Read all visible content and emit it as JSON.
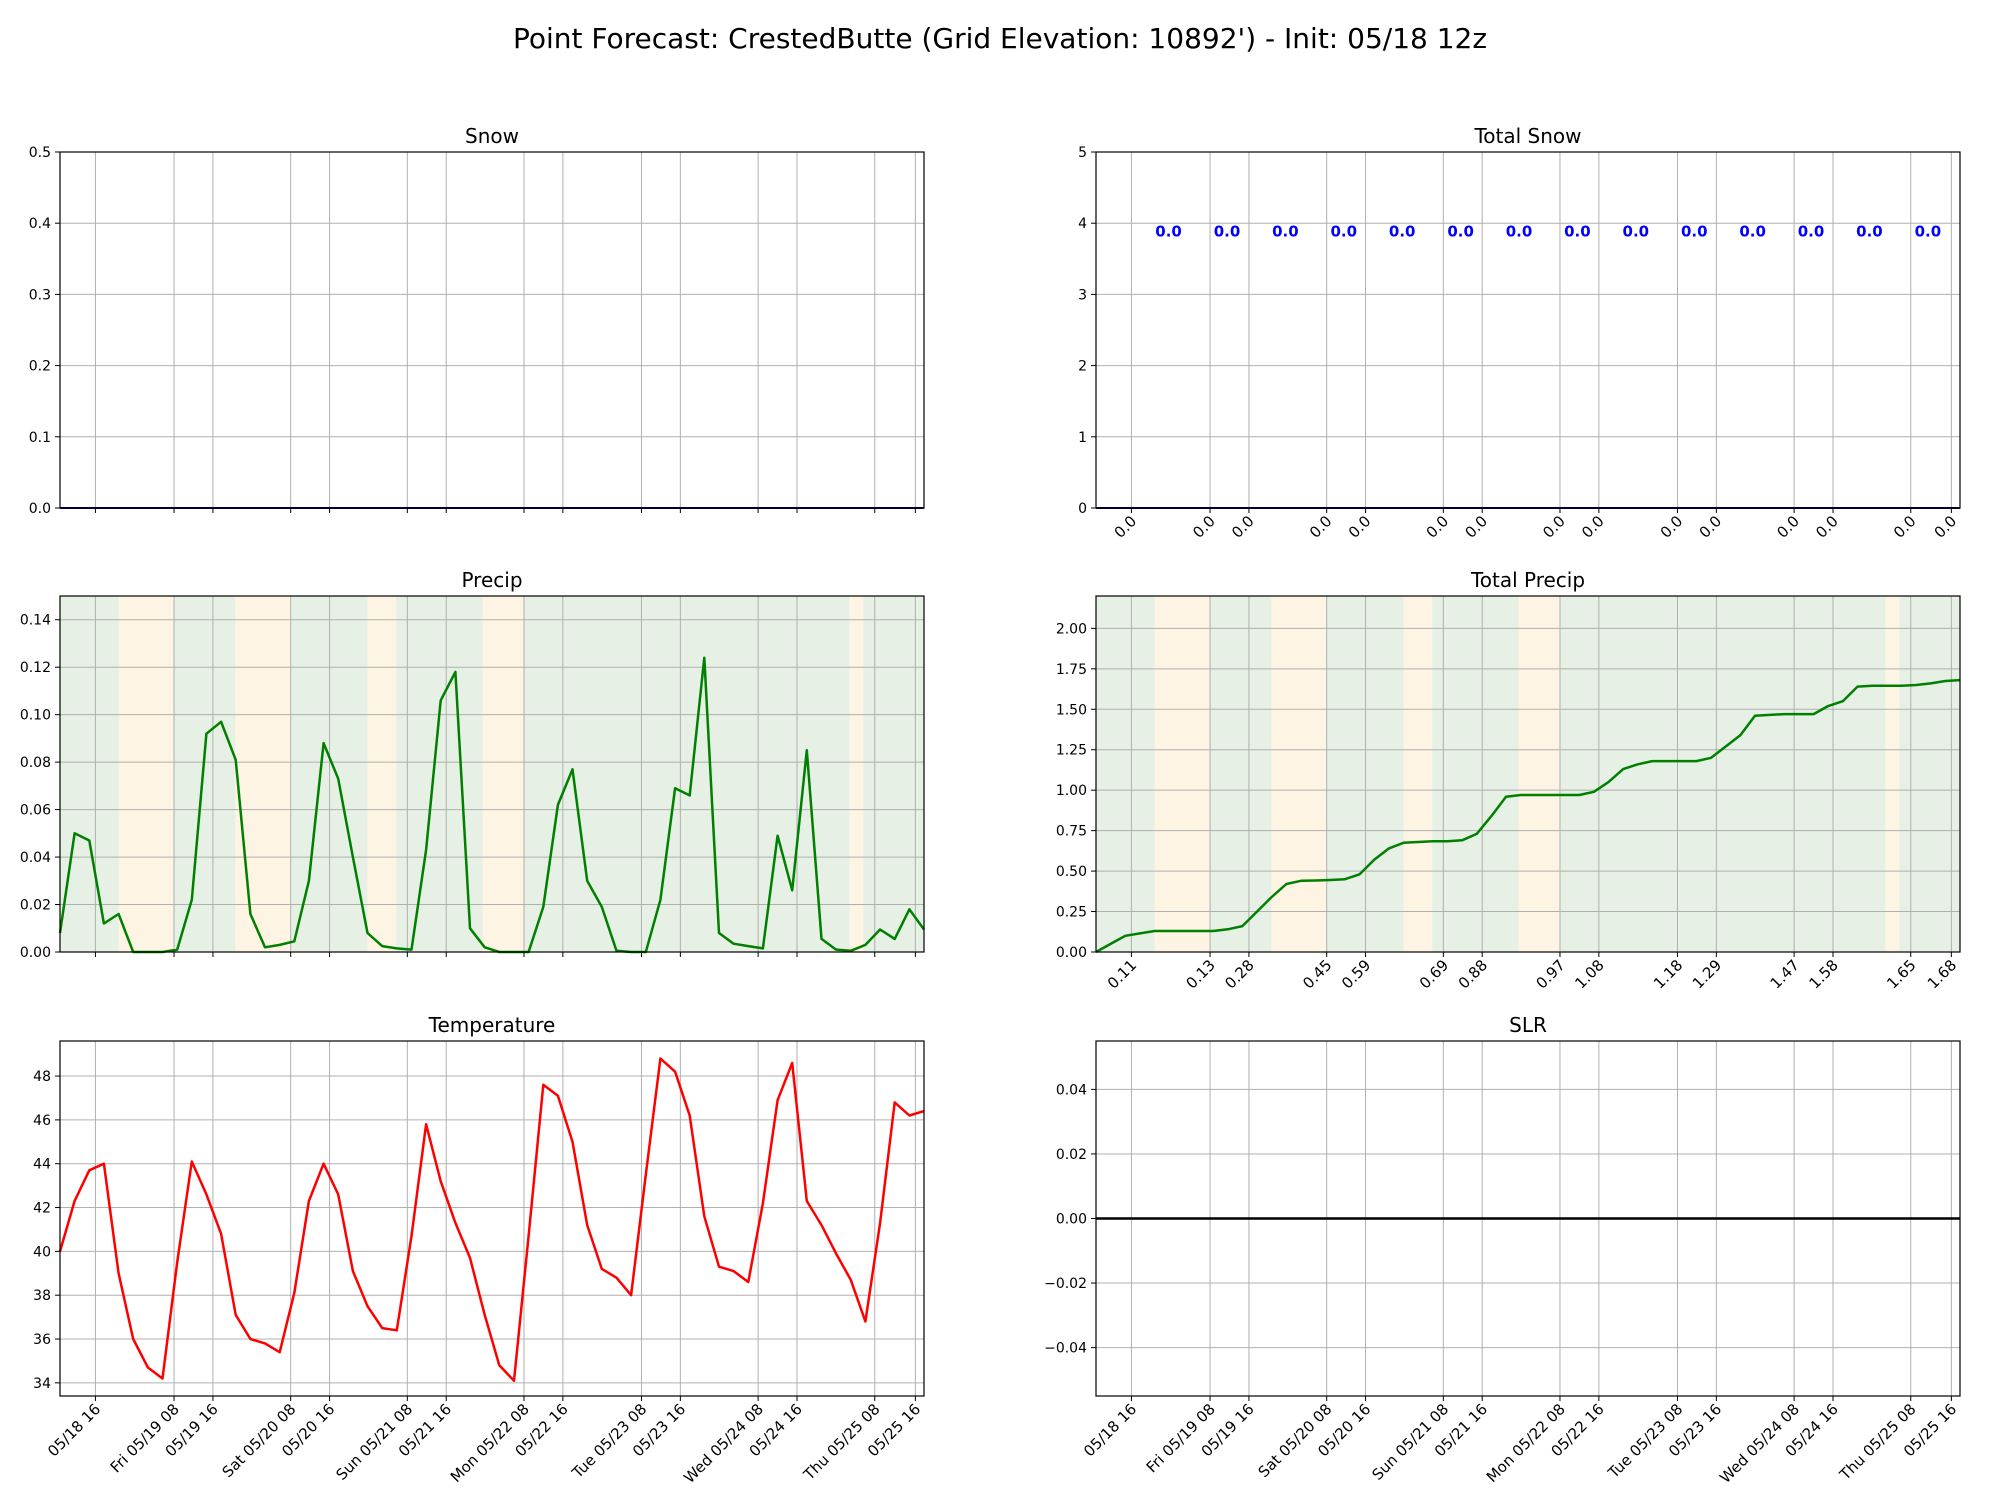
{
  "figure_title": "Point Forecast: CrestedButte (Grid Elevation: 10892') - Init: 05/18 12z",
  "colors": {
    "precip_line": "#008000",
    "temp_line": "#ff0000",
    "snow_line": "#000080",
    "slr_line": "#000000",
    "total_snow_label": "#0000ff",
    "band_green": "#e6f0e4",
    "band_orange": "#fdf4e3",
    "grid": "#b0b0b0"
  },
  "chart_data": [
    {
      "id": "snow",
      "type": "line",
      "title": "Snow",
      "ylim": [
        0,
        0.5
      ],
      "yticks": [
        "0.0",
        "0.1",
        "0.2",
        "0.3",
        "0.4",
        "0.5"
      ],
      "grid": true,
      "series": [
        {
          "values": [
            0,
            0
          ]
        }
      ]
    },
    {
      "id": "total_snow",
      "type": "line",
      "title": "Total Snow",
      "ylim": [
        0,
        5
      ],
      "yticks": [
        "0",
        "1",
        "2",
        "3",
        "4",
        "5"
      ],
      "grid": true,
      "period_totals": [
        "0.0",
        "0.0",
        "0.0",
        "0.0",
        "0.0",
        "0.0",
        "0.0",
        "0.0",
        "0.0",
        "0.0",
        "0.0",
        "0.0",
        "0.0",
        "0.0"
      ],
      "xtick_labels": [
        "0.0",
        "0.0",
        "0.0",
        "0.0",
        "0.0",
        "0.0",
        "0.0",
        "0.0",
        "0.0",
        "0.0",
        "0.0",
        "0.0",
        "0.0",
        "0.0",
        "0.0",
        "0.0"
      ],
      "series": [
        {
          "values": [
            0,
            0
          ]
        }
      ]
    },
    {
      "id": "precip",
      "type": "line",
      "title": "Precip",
      "ylim": [
        0,
        0.15
      ],
      "yticks": [
        "0.00",
        "0.02",
        "0.04",
        "0.06",
        "0.08",
        "0.10",
        "0.12",
        "0.14"
      ],
      "grid": true,
      "series": [
        {
          "values": [
            0.008,
            0.05,
            0.047,
            0.012,
            0.016,
            0,
            0,
            0,
            0.001,
            0.022,
            0.092,
            0.097,
            0.081,
            0.016,
            0.002,
            0.003,
            0.0045,
            0.03,
            0.088,
            0.073,
            0.04,
            0.008,
            0.0025,
            0.0015,
            0.001,
            0.043,
            0.106,
            0.118,
            0.01,
            0.002,
            0,
            0,
            0,
            0.019,
            0.062,
            0.077,
            0.03,
            0.019,
            0.0005,
            0,
            0,
            0.022,
            0.069,
            0.066,
            0.124,
            0.008,
            0.0035,
            0.0025,
            0.0015,
            0.049,
            0.026,
            0.085,
            0.0055,
            0.001,
            0.0005,
            0.003,
            0.0095,
            0.0055,
            0.018,
            0.0095
          ]
        }
      ]
    },
    {
      "id": "total_precip",
      "type": "area",
      "title": "Total Precip",
      "ylim": [
        0,
        2.2
      ],
      "yticks": [
        "0.00",
        "0.25",
        "0.50",
        "0.75",
        "1.00",
        "1.25",
        "1.50",
        "1.75",
        "2.00"
      ],
      "grid": true,
      "xtick_labels": [
        "0.11",
        "0.13",
        "0.28",
        "0.45",
        "0.59",
        "0.69",
        "0.88",
        "0.97",
        "1.08",
        "1.18",
        "1.29",
        "1.47",
        "1.58",
        "1.65",
        "1.68"
      ],
      "series": [
        {
          "values": [
            0,
            0.05,
            0.1,
            0.115,
            0.13,
            0.13,
            0.13,
            0.13,
            0.13,
            0.14,
            0.16,
            0.25,
            0.34,
            0.42,
            0.44,
            0.442,
            0.445,
            0.45,
            0.48,
            0.57,
            0.64,
            0.675,
            0.68,
            0.685,
            0.685,
            0.69,
            0.73,
            0.84,
            0.96,
            0.97,
            0.97,
            0.97,
            0.97,
            0.97,
            0.99,
            1.05,
            1.13,
            1.16,
            1.18,
            1.18,
            1.18,
            1.18,
            1.2,
            1.27,
            1.34,
            1.46,
            1.465,
            1.47,
            1.47,
            1.47,
            1.52,
            1.55,
            1.64,
            1.645,
            1.645,
            1.645,
            1.65,
            1.66,
            1.675,
            1.68
          ]
        }
      ]
    },
    {
      "id": "temperature",
      "type": "line",
      "title": "Temperature",
      "ylim": [
        33.4,
        49.6
      ],
      "yticks": [
        "34",
        "36",
        "38",
        "40",
        "42",
        "44",
        "46",
        "48"
      ],
      "grid": true,
      "series": [
        {
          "values": [
            40.0,
            42.3,
            43.7,
            44.0,
            39.0,
            36.0,
            34.7,
            34.2,
            39.5,
            44.1,
            42.6,
            40.8,
            37.1,
            36.0,
            35.8,
            35.4,
            38.1,
            42.3,
            44.0,
            42.6,
            39.1,
            37.5,
            36.5,
            36.4,
            40.7,
            45.8,
            43.2,
            41.3,
            39.7,
            37.1,
            34.8,
            34.1,
            40.7,
            47.6,
            47.1,
            45.0,
            41.2,
            39.2,
            38.8,
            38.0,
            43.5,
            48.8,
            48.2,
            46.2,
            41.6,
            39.3,
            39.1,
            38.6,
            42.2,
            46.9,
            48.6,
            42.3,
            41.2,
            39.9,
            38.7,
            36.8,
            41.3,
            46.8,
            46.2,
            46.4
          ]
        }
      ]
    },
    {
      "id": "slr",
      "type": "line",
      "title": "SLR",
      "ylim": [
        -0.055,
        0.055
      ],
      "yticks": [
        "−0.04",
        "−0.02",
        "0.00",
        "0.02",
        "0.04"
      ],
      "grid": true,
      "xtick_labels": [
        "05/18 16",
        "Fri 05/19 08",
        "05/19 16",
        "Sat 05/20 08",
        "05/20 16",
        "Sun 05/21 08",
        "05/21 16",
        "Mon 05/22 08",
        "05/22 16",
        "Tue 05/23 08",
        "05/23 16",
        "Wed 05/24 08",
        "05/24 16",
        "Thu 05/25 08",
        "05/25 16"
      ],
      "series": [
        {
          "values": [
            0,
            0
          ]
        }
      ]
    }
  ],
  "time_xtick_labels": [
    "05/18 16",
    "Fri 05/19 08",
    "05/19 16",
    "Sat 05/20 08",
    "05/20 16",
    "Sun 05/21 08",
    "05/21 16",
    "Mon 05/22 08",
    "05/22 16",
    "Tue 05/23 08",
    "05/23 16",
    "Wed 05/24 08",
    "05/24 16",
    "Thu 05/25 08",
    "05/25 16"
  ]
}
